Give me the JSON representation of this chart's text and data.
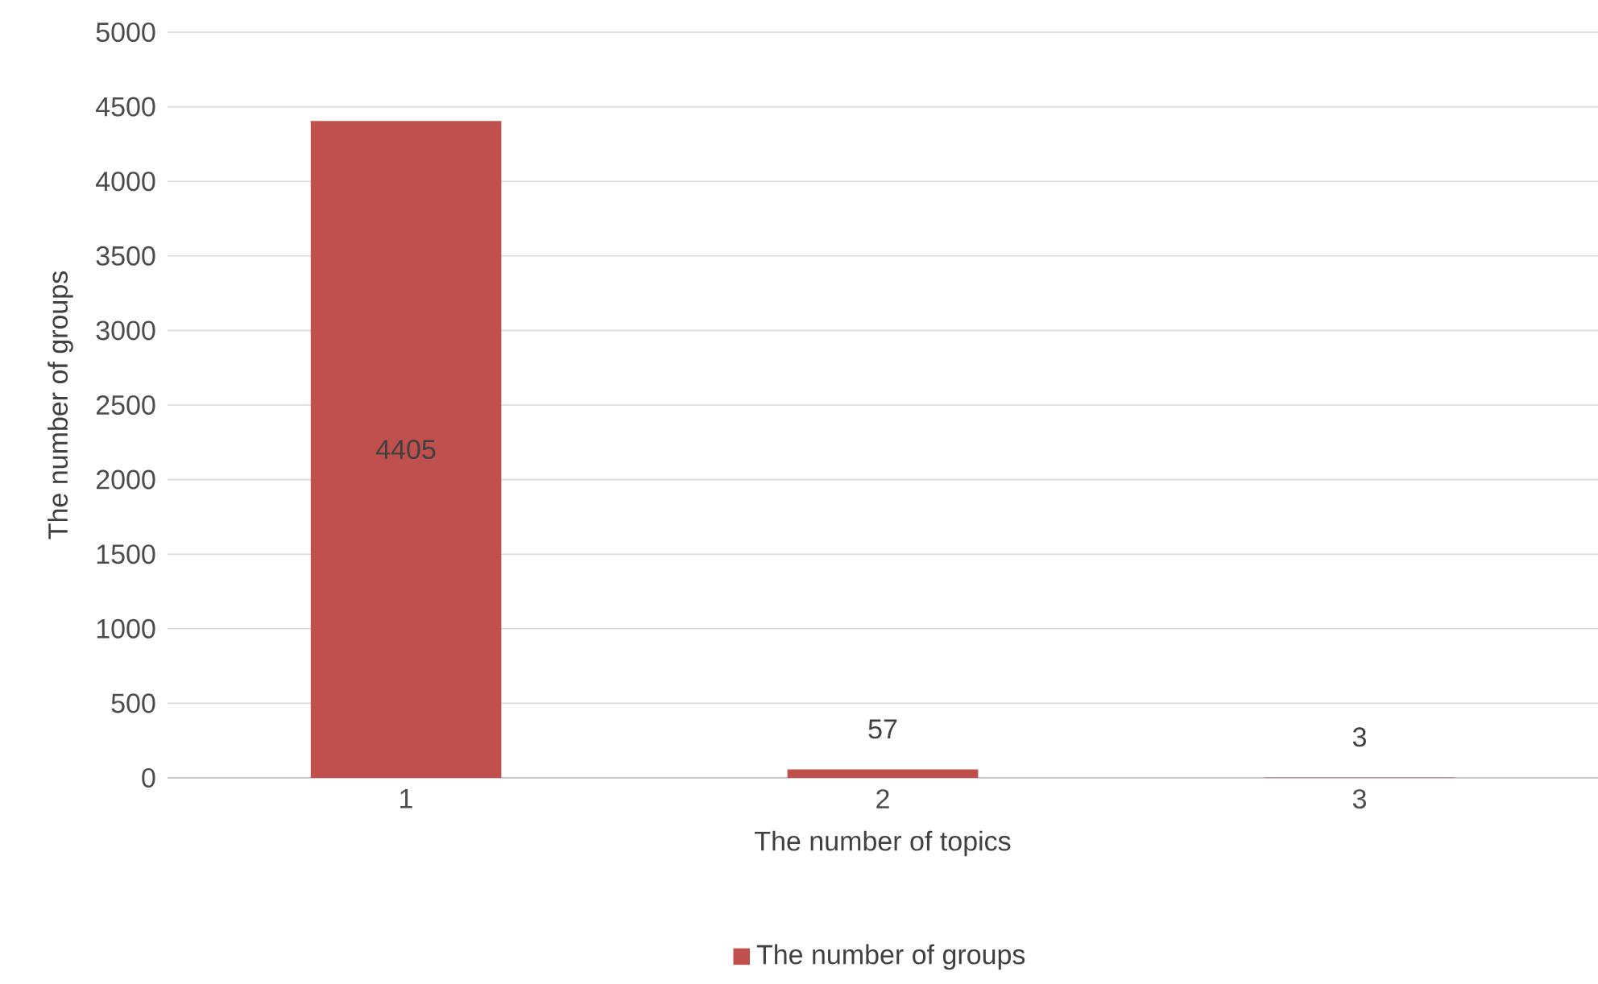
{
  "chart_data": {
    "type": "bar",
    "xlabel": "The number of topics",
    "ylabel": "The number of groups",
    "categories": [
      "1",
      "2",
      "3"
    ],
    "series": [
      {
        "name": "The number of groups",
        "color": "#c0504d",
        "values": [
          4405,
          57,
          3
        ]
      }
    ],
    "ylim": [
      0,
      5000
    ],
    "yticks": [
      0,
      500,
      1000,
      1500,
      2000,
      2500,
      3000,
      3500,
      4000,
      4500,
      5000
    ],
    "grid": "y",
    "legend": "bottom",
    "data_labels": true
  }
}
